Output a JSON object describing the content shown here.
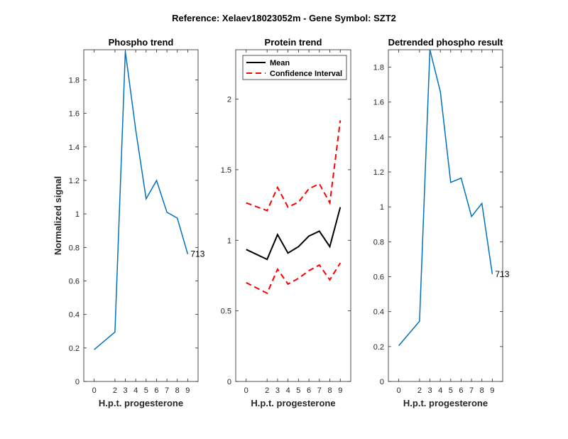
{
  "figure": {
    "title": "Reference:  Xelaev18023052m - Gene Symbol:  SZT2"
  },
  "chart_data": [
    {
      "type": "line",
      "title": "Phospho trend",
      "xlabel": "H.p.t. progesterone",
      "ylabel": "Normalized signal",
      "xlim": [
        -1,
        10
      ],
      "ylim": [
        0,
        1.98
      ],
      "xticks": [
        0,
        2,
        3,
        4,
        5,
        6,
        7,
        8,
        9
      ],
      "yticks": [
        0,
        0.2,
        0.4,
        0.6,
        0.8,
        1,
        1.2,
        1.4,
        1.6,
        1.8
      ],
      "ytick_labels": [
        "0",
        "0.2",
        "0.4",
        "0.6",
        "0.8",
        "1",
        "1.2",
        "1.4",
        "1.6",
        "1.8"
      ],
      "series": [
        {
          "color": "#0072BD",
          "dash": false,
          "x": [
            0,
            2,
            3,
            4,
            5,
            6,
            7,
            8,
            9
          ],
          "y": [
            0.19,
            0.295,
            1.97,
            1.5,
            1.09,
            1.2,
            1.01,
            0.975,
            0.76
          ]
        }
      ],
      "annotation": {
        "text": "713",
        "x": 9,
        "y": 0.76
      }
    },
    {
      "type": "line",
      "title": "Protein trend",
      "xlabel": "H.p.t. progesterone",
      "ylabel": "",
      "xlim": [
        -1,
        10
      ],
      "ylim": [
        0,
        2.35
      ],
      "xticks": [
        0,
        2,
        3,
        4,
        5,
        6,
        7,
        8,
        9
      ],
      "yticks": [
        0,
        0.5,
        1,
        1.5,
        2
      ],
      "ytick_labels": [
        "0",
        "0.5",
        "1",
        "1.5",
        "2"
      ],
      "series": [
        {
          "name": "Mean",
          "color": "#000000",
          "dash": false,
          "x": [
            0,
            2,
            3,
            4,
            5,
            6,
            7,
            8,
            9
          ],
          "y": [
            0.935,
            0.865,
            1.04,
            0.91,
            0.955,
            1.03,
            1.065,
            0.955,
            1.235
          ]
        },
        {
          "name": "Confidence Interval",
          "color": "#FF0000",
          "dash": true,
          "x": [
            0,
            2,
            3,
            4,
            5,
            6,
            7,
            8,
            9
          ],
          "y": [
            1.265,
            1.21,
            1.375,
            1.235,
            1.27,
            1.365,
            1.4,
            1.265,
            1.85
          ]
        },
        {
          "color": "#FF0000",
          "dash": true,
          "x": [
            0,
            2,
            3,
            4,
            5,
            6,
            7,
            8,
            9
          ],
          "y": [
            0.7,
            0.625,
            0.795,
            0.69,
            0.73,
            0.785,
            0.825,
            0.72,
            0.84
          ]
        }
      ],
      "legend": {
        "placement": "top-left",
        "entries": [
          "Mean",
          "Confidence Interval"
        ]
      }
    },
    {
      "type": "line",
      "title": "Detrended phospho result",
      "xlabel": "H.p.t. progesterone",
      "ylabel": "",
      "xlim": [
        -1,
        10
      ],
      "ylim": [
        0,
        1.9
      ],
      "xticks": [
        0,
        2,
        3,
        4,
        5,
        6,
        7,
        8,
        9
      ],
      "yticks": [
        0,
        0.2,
        0.4,
        0.6,
        0.8,
        1,
        1.2,
        1.4,
        1.6,
        1.8
      ],
      "ytick_labels": [
        "0",
        "0.2",
        "0.4",
        "0.6",
        "0.8",
        "1",
        "1.2",
        "1.4",
        "1.6",
        "1.8"
      ],
      "series": [
        {
          "color": "#0072BD",
          "dash": false,
          "x": [
            0,
            2,
            3,
            4,
            5,
            6,
            7,
            8,
            9
          ],
          "y": [
            0.205,
            0.345,
            1.9,
            1.66,
            1.14,
            1.165,
            0.945,
            1.02,
            0.615
          ]
        }
      ],
      "annotation": {
        "text": "713",
        "x": 9,
        "y": 0.615
      }
    }
  ]
}
